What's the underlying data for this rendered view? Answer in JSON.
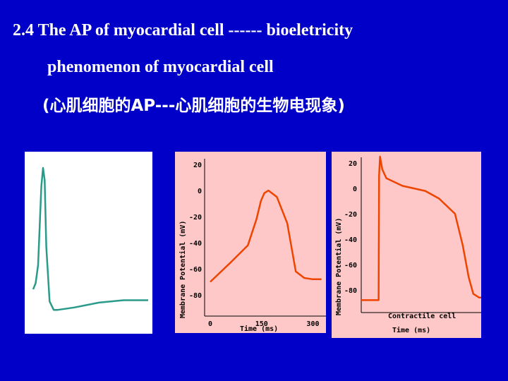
{
  "title": {
    "line1": "2.4 The AP of myocardial cell ------ bioeletricity",
    "line2": "phenomenon of myocardial cell",
    "line3": "(心肌细胞的AP---心肌细胞的生物电现象)"
  },
  "colors": {
    "background": "#0000c8",
    "trace_teal": "#2a9a8a",
    "trace_red": "#ee4400",
    "plot_bg": "#ffc8c8"
  },
  "chart_data": [
    {
      "type": "line",
      "title": "",
      "description_of_series": "unlabeled teal action potential trace",
      "x": [
        0,
        3,
        6,
        10,
        12,
        14,
        16,
        20,
        25,
        30,
        50,
        80,
        110,
        140
      ],
      "values": [
        -75,
        -70,
        -55,
        10,
        25,
        15,
        -40,
        -85,
        -92,
        -92,
        -90,
        -86,
        -84,
        -84
      ],
      "xlabel": "",
      "ylabel": "",
      "color": "#2a9a8a"
    },
    {
      "type": "line",
      "ylabel": "Membrane Potential (mV)",
      "xlabel": "Time (ms)",
      "yticks": [
        20,
        0,
        -20,
        -40,
        -60,
        -80
      ],
      "xticks": [
        0,
        150,
        300
      ],
      "xlim": [
        0,
        330
      ],
      "ylim": [
        -100,
        25
      ],
      "x": [
        0,
        60,
        110,
        135,
        148,
        158,
        170,
        195,
        225,
        250,
        275,
        300,
        325
      ],
      "values": [
        -70,
        -55,
        -42,
        -22,
        -8,
        -2,
        0,
        -5,
        -25,
        -62,
        -67,
        -68,
        -68
      ],
      "color": "#ee4400"
    },
    {
      "type": "line",
      "ylabel": "Membrane Potential (mV)",
      "xlabel": "Time (ms)",
      "yticks": [
        20,
        0,
        -20,
        -40,
        -60,
        -80
      ],
      "annotation": "Contractile cell",
      "xlim": [
        0,
        300
      ],
      "ylim": [
        -100,
        25
      ],
      "x": [
        0,
        38,
        39,
        41,
        46,
        55,
        90,
        140,
        170,
        205,
        222,
        235,
        245,
        258,
        265
      ],
      "values": [
        -88,
        -88,
        10,
        25,
        15,
        8,
        2,
        -2,
        -8,
        -20,
        -45,
        -70,
        -83,
        -86,
        -86
      ],
      "color": "#ee4400"
    }
  ]
}
